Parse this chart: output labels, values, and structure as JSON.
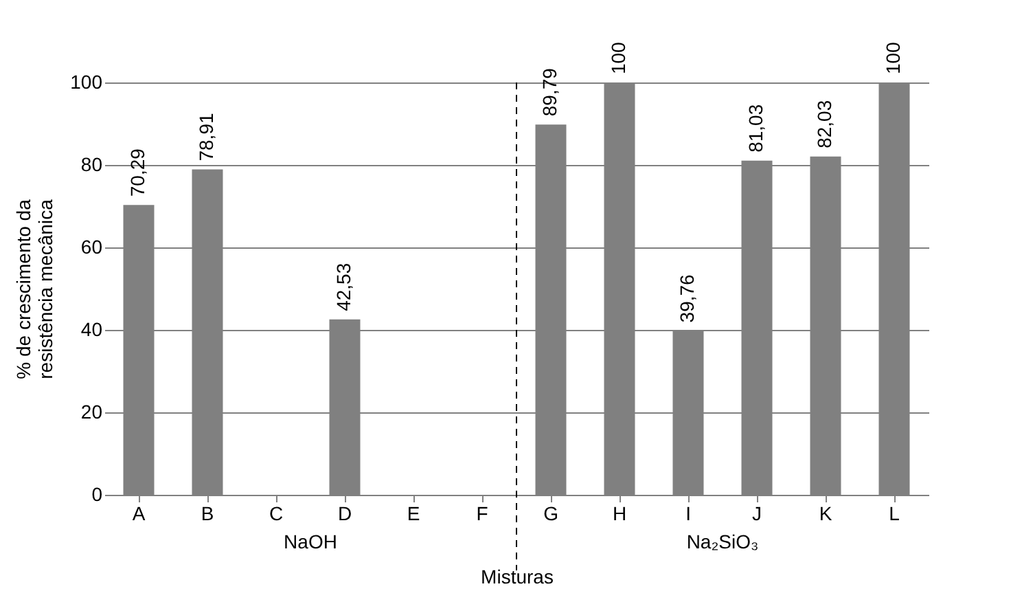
{
  "chart_data": {
    "type": "bar",
    "xlabel": "Misturas",
    "ylabel": "% de crescimento da\nresistência mecânica",
    "categories": [
      "A",
      "B",
      "C",
      "D",
      "E",
      "F",
      "G",
      "H",
      "I",
      "J",
      "K",
      "L"
    ],
    "values": [
      70.29,
      78.91,
      null,
      42.53,
      null,
      null,
      89.79,
      100,
      39.76,
      81.03,
      82.03,
      100
    ],
    "value_labels": [
      "70,29",
      "78,91",
      null,
      "42,53",
      null,
      null,
      "89,79",
      "100",
      "39,76",
      "81,03",
      "82,03",
      "100"
    ],
    "color": "#808080",
    "ylim": [
      0,
      100
    ],
    "yticks": [
      0,
      20,
      40,
      60,
      80,
      100
    ],
    "grid": "y",
    "ref_lines": [
      {
        "axis": "x",
        "value": "G",
        "line_style": "dashed",
        "color": "#000000"
      }
    ],
    "annotations": [
      "NaOH",
      "Na₂SiO₃"
    ]
  }
}
